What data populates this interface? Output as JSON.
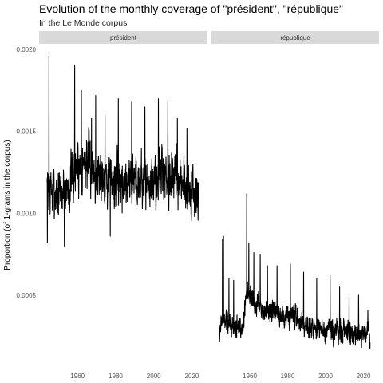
{
  "chart_data": {
    "type": "line",
    "title": "Evolution of the monthly coverage of \"président\", \"république\"",
    "subtitle": "In the Le Monde corpus",
    "xlabel": "",
    "ylabel": "Proportion (of 1-grams in the corpus)",
    "ylim": [
      0.0001,
      0.00202
    ],
    "xlim": [
      1944,
      2024
    ],
    "y_ticks": [
      {
        "value": 0.0005,
        "label": "0.0005"
      },
      {
        "value": 0.001,
        "label": "0.0010"
      },
      {
        "value": 0.0015,
        "label": "0.0015"
      },
      {
        "value": 0.002,
        "label": "0.0020"
      }
    ],
    "x_ticks": [
      {
        "value": 1960,
        "label": "1960"
      },
      {
        "value": 1980,
        "label": "1980"
      },
      {
        "value": 2000,
        "label": "2000"
      },
      {
        "value": 2020,
        "label": "2020"
      }
    ],
    "grid": false,
    "facets": [
      {
        "label": "président",
        "start_year": 1944,
        "end_year": 2023,
        "seed": 7,
        "base": [
          [
            1944,
            0.00115
          ],
          [
            1950,
            0.00112
          ],
          [
            1955,
            0.00116
          ],
          [
            1960,
            0.00128
          ],
          [
            1965,
            0.00132
          ],
          [
            1970,
            0.00125
          ],
          [
            1975,
            0.00124
          ],
          [
            1980,
            0.00118
          ],
          [
            1985,
            0.0012
          ],
          [
            1990,
            0.00122
          ],
          [
            1995,
            0.0012
          ],
          [
            2000,
            0.00118
          ],
          [
            2005,
            0.00125
          ],
          [
            2010,
            0.00123
          ],
          [
            2015,
            0.0012
          ],
          [
            2020,
            0.00112
          ],
          [
            2023,
            0.00108
          ]
        ],
        "noise": 0.000125,
        "min": 0.00078,
        "max": 0.00202,
        "spikes": [
          [
            1944.2,
            0.00082
          ],
          [
            1945.0,
            0.00196
          ],
          [
            1953.1,
            0.0008
          ],
          [
            1958.5,
            0.0019
          ],
          [
            1962.0,
            0.00175
          ],
          [
            1967.3,
            0.00158
          ],
          [
            1969.5,
            0.00172
          ],
          [
            1974.4,
            0.0016
          ],
          [
            1977.2,
            0.00086
          ],
          [
            1981.4,
            0.0017
          ],
          [
            1988.4,
            0.00168
          ],
          [
            1995.3,
            0.00165
          ],
          [
            2002.4,
            0.0017
          ],
          [
            2007.4,
            0.00168
          ],
          [
            2012.4,
            0.00158
          ],
          [
            2017.4,
            0.00152
          ]
        ]
      },
      {
        "label": "république",
        "start_year": 1944,
        "end_year": 2023,
        "seed": 19,
        "base": [
          [
            1944,
            0.0003
          ],
          [
            1946,
            0.00036
          ],
          [
            1950,
            0.00032
          ],
          [
            1955,
            0.0003
          ],
          [
            1957,
            0.00036
          ],
          [
            1958,
            0.00052
          ],
          [
            1960,
            0.0005
          ],
          [
            1963,
            0.00044
          ],
          [
            1966,
            0.00042
          ],
          [
            1970,
            0.0004
          ],
          [
            1975,
            0.00038
          ],
          [
            1980,
            0.00036
          ],
          [
            1985,
            0.00035
          ],
          [
            1990,
            0.00033
          ],
          [
            1995,
            0.0003
          ],
          [
            2000,
            0.00027
          ],
          [
            2005,
            0.00028
          ],
          [
            2010,
            0.00027
          ],
          [
            2015,
            0.00026
          ],
          [
            2020,
            0.00028
          ],
          [
            2023,
            0.00027
          ]
        ],
        "noise": 5.5e-05,
        "min": 0.00017,
        "max": 0.00112,
        "spikes": [
          [
            1944.1,
            0.00022
          ],
          [
            1945.6,
            0.00084
          ],
          [
            1946.2,
            0.00086
          ],
          [
            1949.0,
            0.0006
          ],
          [
            1951.5,
            0.00059
          ],
          [
            1958.4,
            0.00112
          ],
          [
            1959.5,
            0.00082
          ],
          [
            1962.2,
            0.00076
          ],
          [
            1965.5,
            0.00075
          ],
          [
            1969.3,
            0.00068
          ],
          [
            1974.4,
            0.00068
          ],
          [
            1981.4,
            0.00069
          ],
          [
            1988.4,
            0.00064
          ],
          [
            1995.3,
            0.0006
          ],
          [
            2002.4,
            0.00062
          ],
          [
            2007.4,
            0.00055
          ],
          [
            2012.4,
            0.00049
          ],
          [
            2017.4,
            0.0005
          ],
          [
            2022.3,
            0.00041
          ],
          [
            2019.0,
            0.00018
          ]
        ]
      }
    ]
  }
}
